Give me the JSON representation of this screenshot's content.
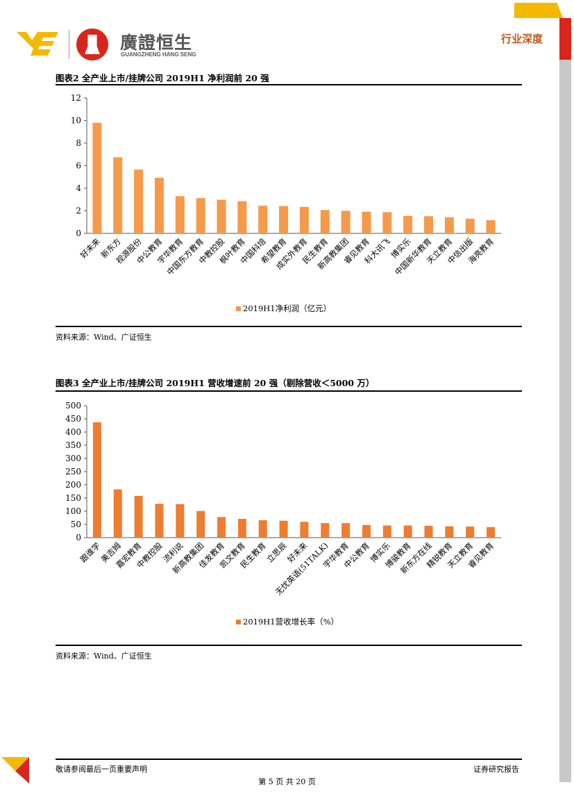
{
  "header": {
    "brand_cn": "廣證恒生",
    "brand_en": "GUANGZHENG HANG SENG",
    "section_tag": "行业深度",
    "colors": {
      "yellow": "#F5B800",
      "red": "#D9261C",
      "gray": "#C8C8C8",
      "tag": "#C0561A"
    }
  },
  "figure2": {
    "title": "图表2 全产业上市/挂牌公司 2019H1 净利润前 20 强",
    "source": "资料来源：Wind、广证恒生"
  },
  "figure3": {
    "title": "图表3 全产业上市/挂牌公司 2019H1 营收增速前 20 强（剔除营收＜5000 万）",
    "source": "资料来源：Wind、广证恒生"
  },
  "chart_data": [
    {
      "type": "bar",
      "categories": [
        "好未来",
        "新东方",
        "视源股份",
        "中公教育",
        "宇华教育",
        "中国东方教育",
        "中教控股",
        "枫叶教育",
        "中国科培",
        "希望教育",
        "成实外教育",
        "民生教育",
        "新高教集团",
        "睿见教育",
        "科大讯飞",
        "博实乐",
        "中国新华教育",
        "天立教育",
        "中信出版",
        "海亮教育"
      ],
      "series": [
        {
          "name": "2019H1净利润（亿元）",
          "values": [
            9.8,
            6.75,
            5.65,
            4.93,
            3.3,
            3.12,
            2.98,
            2.85,
            2.45,
            2.43,
            2.35,
            2.07,
            2.0,
            1.92,
            1.88,
            1.55,
            1.52,
            1.43,
            1.3,
            1.17
          ]
        }
      ],
      "yticks": [
        "0",
        "2",
        "4",
        "6",
        "8",
        "10",
        "12"
      ],
      "ylim": [
        0,
        12
      ],
      "grid": false,
      "legend": "bottom",
      "color": "#F59A4A"
    },
    {
      "type": "bar",
      "categories": [
        "跟谁学",
        "美吉姆",
        "嘉宏教育",
        "中教控股",
        "流利说",
        "新高教集团",
        "佳发教育",
        "凯文教育",
        "民生教育",
        "立思辰",
        "好未来",
        "无忧英语(51TALK)",
        "宇华教育",
        "中公教育",
        "博实乐",
        "博骏教育",
        "新东方在线",
        "精锐教育",
        "天立教育",
        "睿见教育"
      ],
      "series": [
        {
          "name": "2019H1营收增长率（%）",
          "values": [
            437,
            183,
            158,
            128,
            127,
            101,
            78,
            71,
            66,
            64,
            60,
            55,
            55,
            48,
            46,
            46,
            45,
            43,
            42,
            40
          ]
        }
      ],
      "yticks": [
        "0",
        "50",
        "100",
        "150",
        "200",
        "250",
        "300",
        "350",
        "400",
        "450",
        "500"
      ],
      "ylim": [
        0,
        500
      ],
      "grid": false,
      "legend": "bottom",
      "color": "#ED7D31"
    }
  ],
  "footer": {
    "disclaimer": "敬请参阅最后一页重要声明",
    "report_type": "证券研究报告",
    "page": "第 5 页 共 20 页"
  }
}
